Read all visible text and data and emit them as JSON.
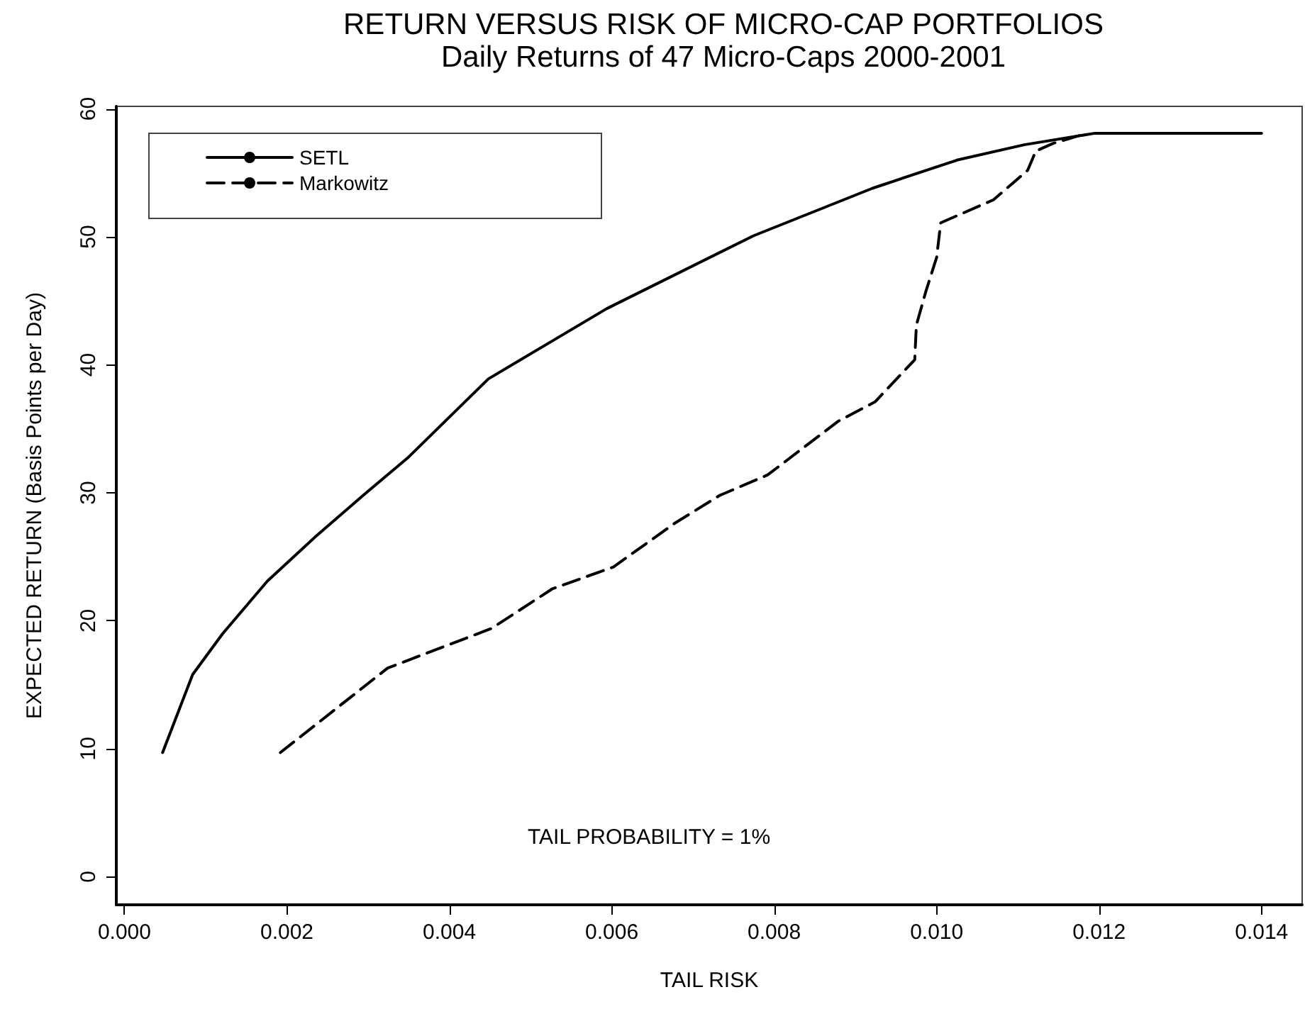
{
  "chart_data": {
    "type": "line",
    "title": "RETURN VERSUS RISK OF MICRO-CAP PORTFOLIOS",
    "subtitle": "Daily Returns of 47 Micro-Caps 2000-2001",
    "xlabel": "TAIL RISK",
    "ylabel": "EXPECTED RETURN (Basis Points per Day)",
    "annotations": [
      "TAIL PROBABILITY = 1%"
    ],
    "xlim": [
      -0.0001,
      0.0145
    ],
    "ylim": [
      -2.2,
      60.2
    ],
    "xticks": [
      {
        "value": 0,
        "label": "0.000"
      },
      {
        "value": 0.002,
        "label": "0.002"
      },
      {
        "value": 0.004,
        "label": "0.004"
      },
      {
        "value": 0.006,
        "label": "0.006"
      },
      {
        "value": 0.008,
        "label": "0.008"
      },
      {
        "value": 0.01,
        "label": "0.010"
      },
      {
        "value": 0.012,
        "label": "0.012"
      },
      {
        "value": 0.014,
        "label": "0.014"
      }
    ],
    "yticks": [
      0,
      10,
      20,
      30,
      40,
      50,
      60
    ],
    "grid": false,
    "legend": "top left",
    "marker": "none",
    "series": [
      {
        "name": "SETL",
        "color": "#000000",
        "line_style": "solid",
        "x": [
          0.00047,
          0.00084,
          0.00121,
          0.00176,
          0.00234,
          0.00294,
          0.0035,
          0.00448,
          0.00594,
          0.00775,
          0.00921,
          0.01025,
          0.01108,
          0.01195,
          0.014
        ],
        "values": [
          9.7,
          15.8,
          19.0,
          23.1,
          26.5,
          29.8,
          32.8,
          38.9,
          44.4,
          50.1,
          53.8,
          56.0,
          57.2,
          58.1,
          58.1
        ]
      },
      {
        "name": "Markowitz",
        "color": "#000000",
        "line_style": "dashed",
        "x": [
          0.00192,
          0.00324,
          0.00452,
          0.00527,
          0.00602,
          0.00677,
          0.00733,
          0.00792,
          0.00879,
          0.00924,
          0.00973,
          0.00975,
          0.00987,
          0.01,
          0.01005,
          0.0107,
          0.01112,
          0.01122,
          0.01143,
          0.01185
        ],
        "values": [
          9.7,
          16.3,
          19.4,
          22.5,
          24.2,
          27.6,
          29.8,
          31.4,
          35.6,
          37.1,
          40.4,
          43.1,
          45.8,
          48.4,
          51.1,
          52.9,
          55.2,
          56.7,
          57.3,
          58.1
        ]
      }
    ]
  }
}
